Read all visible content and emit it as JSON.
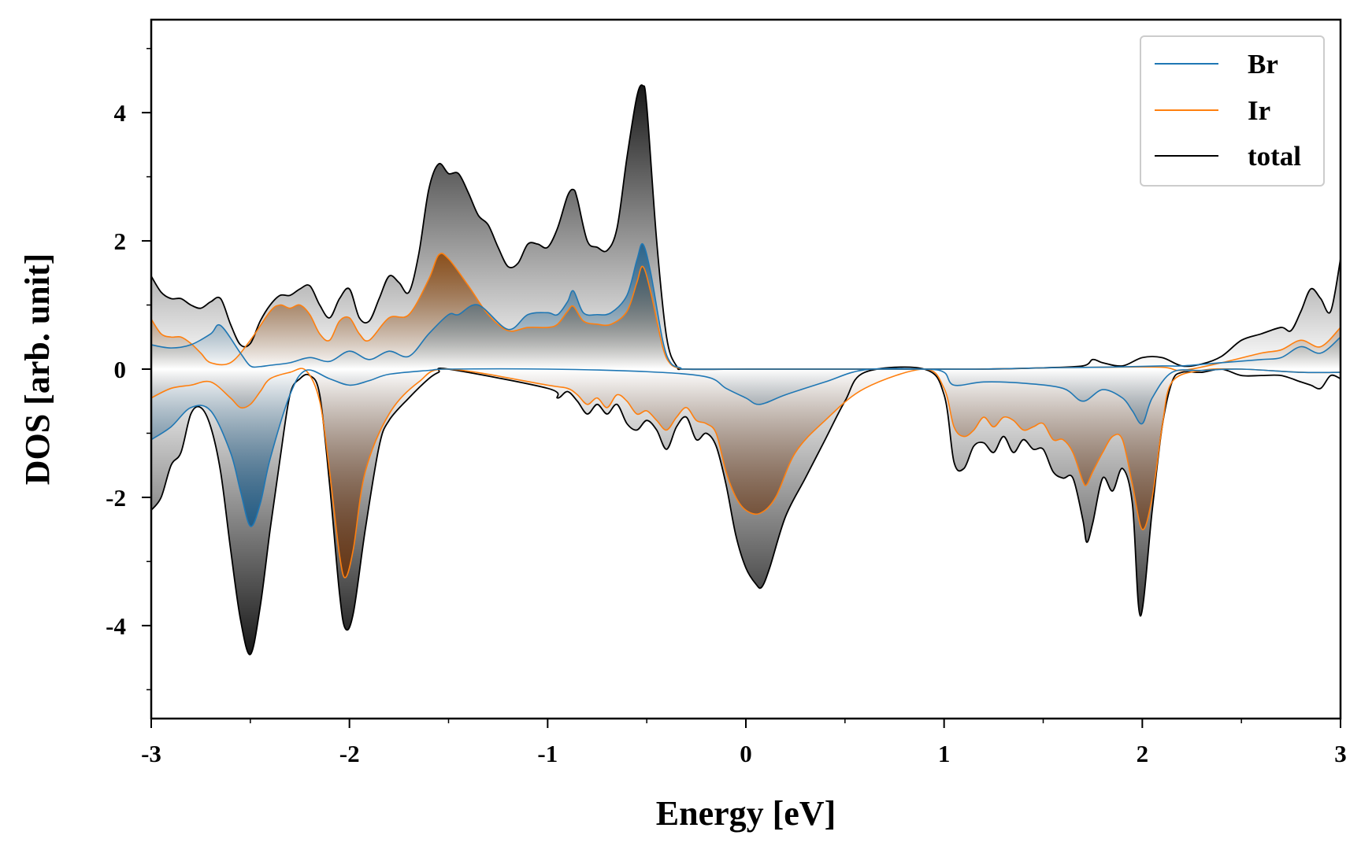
{
  "chart_data": {
    "type": "area",
    "xlabel": "Energy [eV]",
    "ylabel": "DOS [arb. unit]",
    "xlim": [
      -3,
      3
    ],
    "ylim": [
      -5.45,
      5.45
    ],
    "xticks": [
      -3,
      -2,
      -1,
      0,
      1,
      2,
      3
    ],
    "xtick_labels": [
      "-3",
      "-2",
      "-1",
      "0",
      "1",
      "2",
      "3"
    ],
    "yticks": [
      -4,
      -2,
      0,
      2,
      4
    ],
    "ytick_labels": [
      "-4",
      "-2",
      "0",
      "2",
      "4"
    ],
    "legend": {
      "placement": "top-right",
      "entries": [
        "Br",
        "Ir",
        "total"
      ]
    },
    "grid": false,
    "series": [
      {
        "name": "Br",
        "color": "#1f77b4",
        "spin_up": {
          "x": [
            -3,
            -2.9,
            -2.8,
            -2.7,
            -2.65,
            -2.55,
            -2.5,
            -2.45,
            -2.4,
            -2.3,
            -2.2,
            -2.1,
            -2.0,
            -1.9,
            -1.8,
            -1.7,
            -1.6,
            -1.5,
            -1.45,
            -1.35,
            -1.2,
            -1.1,
            -1.0,
            -0.95,
            -0.9,
            -0.87,
            -0.82,
            -0.75,
            -0.68,
            -0.6,
            -0.55,
            -0.52,
            -0.48,
            -0.42,
            -0.38,
            -0.33,
            -0.3,
            0.0,
            0.3,
            0.6,
            0.9,
            1.2,
            1.5,
            1.8,
            2.1,
            2.2,
            2.4,
            2.6,
            2.7,
            2.8,
            2.9,
            3.0
          ],
          "y": [
            0.38,
            0.33,
            0.38,
            0.55,
            0.68,
            0.25,
            0.05,
            0.04,
            0.06,
            0.1,
            0.18,
            0.12,
            0.28,
            0.15,
            0.28,
            0.2,
            0.55,
            0.85,
            0.85,
            1.0,
            0.62,
            0.85,
            0.88,
            0.85,
            1.05,
            1.22,
            0.88,
            0.85,
            0.88,
            1.15,
            1.7,
            1.95,
            1.5,
            0.45,
            0.1,
            0.02,
            0.0,
            0.0,
            0.0,
            0.0,
            0.0,
            0.0,
            0.02,
            0.03,
            0.05,
            0.05,
            0.1,
            0.15,
            0.18,
            0.35,
            0.25,
            0.5
          ]
        },
        "spin_down": {
          "x": [
            -3,
            -2.9,
            -2.8,
            -2.7,
            -2.6,
            -2.55,
            -2.5,
            -2.45,
            -2.4,
            -2.3,
            -2.22,
            -2.1,
            -2.0,
            -1.9,
            -1.8,
            -1.6,
            -1.5,
            -1.0,
            -0.5,
            -0.2,
            -0.1,
            0.0,
            0.07,
            0.2,
            0.4,
            0.6,
            0.9,
            1.0,
            1.05,
            1.2,
            1.4,
            1.6,
            1.7,
            1.8,
            1.9,
            1.95,
            2.0,
            2.05,
            2.15,
            2.3,
            2.5,
            2.8,
            3.0
          ],
          "y": [
            -1.1,
            -0.9,
            -0.6,
            -0.65,
            -1.3,
            -1.9,
            -2.45,
            -2.1,
            -1.4,
            -0.4,
            -0.02,
            -0.15,
            -0.25,
            -0.18,
            -0.08,
            -0.02,
            0.0,
            0.0,
            -0.04,
            -0.12,
            -0.3,
            -0.45,
            -0.55,
            -0.4,
            -0.2,
            -0.01,
            0.0,
            -0.05,
            -0.25,
            -0.2,
            -0.22,
            -0.3,
            -0.5,
            -0.32,
            -0.45,
            -0.65,
            -0.85,
            -0.45,
            -0.05,
            -0.02,
            0.0,
            -0.05,
            -0.05
          ]
        }
      },
      {
        "name": "Ir",
        "color": "#ff7f0e",
        "spin_up": {
          "x": [
            -3,
            -2.95,
            -2.9,
            -2.85,
            -2.8,
            -2.75,
            -2.7,
            -2.6,
            -2.5,
            -2.4,
            -2.35,
            -2.3,
            -2.25,
            -2.2,
            -2.15,
            -2.1,
            -2.05,
            -2.0,
            -1.95,
            -1.9,
            -1.8,
            -1.7,
            -1.6,
            -1.55,
            -1.5,
            -1.4,
            -1.3,
            -1.2,
            -1.1,
            -1.0,
            -0.95,
            -0.9,
            -0.87,
            -0.82,
            -0.75,
            -0.68,
            -0.6,
            -0.55,
            -0.52,
            -0.48,
            -0.42,
            -0.38,
            -0.33,
            -0.3,
            0.0,
            0.3,
            0.6,
            0.9,
            1.2,
            1.5,
            1.8,
            2.1,
            2.2,
            2.4,
            2.6,
            2.7,
            2.8,
            2.9,
            3.0
          ],
          "y": [
            0.78,
            0.55,
            0.5,
            0.5,
            0.4,
            0.25,
            0.1,
            0.1,
            0.45,
            0.9,
            1.0,
            0.95,
            1.0,
            0.85,
            0.55,
            0.45,
            0.75,
            0.8,
            0.55,
            0.45,
            0.8,
            0.85,
            1.4,
            1.78,
            1.72,
            1.3,
            0.85,
            0.6,
            0.65,
            0.65,
            0.7,
            0.9,
            0.98,
            0.75,
            0.7,
            0.7,
            0.9,
            1.35,
            1.6,
            1.2,
            0.35,
            0.08,
            0.01,
            0.0,
            0.0,
            0.0,
            0.0,
            0.0,
            0.0,
            0.02,
            0.03,
            0.03,
            -0.02,
            0.1,
            0.25,
            0.3,
            0.45,
            0.35,
            0.65
          ]
        },
        "spin_down": {
          "x": [
            -3,
            -2.9,
            -2.8,
            -2.7,
            -2.6,
            -2.55,
            -2.5,
            -2.45,
            -2.4,
            -2.3,
            -2.22,
            -2.15,
            -2.1,
            -2.05,
            -2.02,
            -1.98,
            -1.92,
            -1.8,
            -1.65,
            -1.5,
            -1.0,
            -0.9,
            -0.85,
            -0.8,
            -0.75,
            -0.7,
            -0.65,
            -0.6,
            -0.55,
            -0.5,
            -0.45,
            -0.4,
            -0.35,
            -0.3,
            -0.25,
            -0.2,
            -0.15,
            -0.1,
            -0.05,
            0.0,
            0.07,
            0.15,
            0.25,
            0.4,
            0.6,
            0.9,
            1.0,
            1.05,
            1.1,
            1.15,
            1.2,
            1.25,
            1.3,
            1.35,
            1.4,
            1.45,
            1.5,
            1.55,
            1.6,
            1.65,
            1.7,
            1.72,
            1.75,
            1.8,
            1.85,
            1.9,
            1.95,
            2.0,
            2.05,
            2.1,
            2.15,
            2.3,
            2.5,
            2.8,
            3.0
          ],
          "y": [
            -0.45,
            -0.3,
            -0.25,
            -0.2,
            -0.45,
            -0.6,
            -0.55,
            -0.35,
            -0.15,
            -0.05,
            -0.02,
            -0.5,
            -1.6,
            -2.9,
            -3.25,
            -2.8,
            -1.6,
            -0.7,
            -0.2,
            0.0,
            -0.25,
            -0.3,
            -0.4,
            -0.55,
            -0.45,
            -0.6,
            -0.4,
            -0.5,
            -0.7,
            -0.65,
            -0.8,
            -0.95,
            -0.75,
            -0.6,
            -0.8,
            -0.85,
            -1.0,
            -1.6,
            -2.0,
            -2.2,
            -2.25,
            -2.0,
            -1.3,
            -0.8,
            -0.3,
            0.0,
            -0.3,
            -0.9,
            -1.05,
            -0.95,
            -0.75,
            -0.9,
            -0.75,
            -0.8,
            -0.95,
            -0.9,
            -0.85,
            -1.1,
            -1.1,
            -1.3,
            -1.75,
            -1.8,
            -1.6,
            -1.3,
            -1.05,
            -1.1,
            -1.8,
            -2.5,
            -2.0,
            -0.9,
            -0.2,
            -0.02,
            0.0,
            -0.05,
            -0.05
          ]
        }
      },
      {
        "name": "total",
        "color": "#000000",
        "spin_up": {
          "x": [
            -3,
            -2.95,
            -2.9,
            -2.85,
            -2.8,
            -2.75,
            -2.7,
            -2.65,
            -2.6,
            -2.55,
            -2.5,
            -2.45,
            -2.4,
            -2.35,
            -2.3,
            -2.25,
            -2.2,
            -2.15,
            -2.1,
            -2.05,
            -2.0,
            -1.95,
            -1.9,
            -1.85,
            -1.8,
            -1.75,
            -1.7,
            -1.65,
            -1.6,
            -1.55,
            -1.5,
            -1.45,
            -1.4,
            -1.35,
            -1.3,
            -1.25,
            -1.2,
            -1.15,
            -1.1,
            -1.05,
            -1.0,
            -0.95,
            -0.9,
            -0.87,
            -0.85,
            -0.8,
            -0.75,
            -0.7,
            -0.65,
            -0.6,
            -0.55,
            -0.52,
            -0.5,
            -0.45,
            -0.4,
            -0.35,
            -0.3,
            0.0,
            0.3,
            0.6,
            0.9,
            1.2,
            1.5,
            1.7,
            1.75,
            1.8,
            1.9,
            2.0,
            2.1,
            2.2,
            2.3,
            2.4,
            2.5,
            2.6,
            2.7,
            2.75,
            2.8,
            2.85,
            2.9,
            2.95,
            3.0
          ],
          "y": [
            1.45,
            1.2,
            1.1,
            1.1,
            1.0,
            0.95,
            1.05,
            1.1,
            0.7,
            0.38,
            0.4,
            0.75,
            1.0,
            1.15,
            1.15,
            1.25,
            1.3,
            1.0,
            0.8,
            1.1,
            1.25,
            0.8,
            0.75,
            1.1,
            1.45,
            1.35,
            1.2,
            1.8,
            2.8,
            3.2,
            3.05,
            3.05,
            2.75,
            2.4,
            2.25,
            1.9,
            1.6,
            1.65,
            1.95,
            1.95,
            1.9,
            2.2,
            2.7,
            2.8,
            2.65,
            2.0,
            1.9,
            1.85,
            2.2,
            3.3,
            4.25,
            4.42,
            4.1,
            2.0,
            0.5,
            0.05,
            0.0,
            0.0,
            0.0,
            0.0,
            0.0,
            0.0,
            0.02,
            0.05,
            0.15,
            0.1,
            0.05,
            0.18,
            0.18,
            0.05,
            0.08,
            0.2,
            0.45,
            0.55,
            0.65,
            0.6,
            0.9,
            1.25,
            1.1,
            0.9,
            1.72
          ]
        },
        "spin_down": {
          "x": [
            -3,
            -2.95,
            -2.9,
            -2.85,
            -2.8,
            -2.75,
            -2.7,
            -2.65,
            -2.6,
            -2.55,
            -2.5,
            -2.45,
            -2.4,
            -2.35,
            -2.3,
            -2.25,
            -2.2,
            -2.15,
            -2.1,
            -2.05,
            -2.02,
            -1.98,
            -1.92,
            -1.85,
            -1.8,
            -1.7,
            -1.6,
            -1.55,
            -1.5,
            -1.0,
            -0.95,
            -0.9,
            -0.85,
            -0.8,
            -0.75,
            -0.7,
            -0.65,
            -0.6,
            -0.55,
            -0.5,
            -0.45,
            -0.4,
            -0.35,
            -0.3,
            -0.25,
            -0.2,
            -0.15,
            -0.1,
            -0.05,
            0.0,
            0.05,
            0.08,
            0.12,
            0.2,
            0.3,
            0.4,
            0.5,
            0.6,
            0.9,
            1.0,
            1.05,
            1.1,
            1.15,
            1.2,
            1.25,
            1.3,
            1.35,
            1.4,
            1.45,
            1.5,
            1.55,
            1.6,
            1.65,
            1.7,
            1.72,
            1.75,
            1.8,
            1.85,
            1.9,
            1.95,
            1.99,
            2.05,
            2.1,
            2.15,
            2.2,
            2.3,
            2.4,
            2.5,
            2.6,
            2.7,
            2.8,
            2.85,
            2.9,
            2.95,
            3.0
          ],
          "y": [
            -2.2,
            -2.0,
            -1.5,
            -1.3,
            -0.7,
            -0.6,
            -0.9,
            -1.6,
            -2.8,
            -3.9,
            -4.45,
            -3.7,
            -2.5,
            -1.4,
            -0.4,
            -0.15,
            -0.1,
            -0.4,
            -1.8,
            -3.5,
            -4.05,
            -3.8,
            -2.5,
            -1.2,
            -0.8,
            -0.45,
            -0.15,
            -0.05,
            0.0,
            -0.3,
            -0.45,
            -0.35,
            -0.5,
            -0.7,
            -0.55,
            -0.7,
            -0.55,
            -0.85,
            -0.95,
            -0.8,
            -0.95,
            -1.25,
            -0.9,
            -0.75,
            -1.1,
            -1.0,
            -1.2,
            -1.8,
            -2.6,
            -3.1,
            -3.35,
            -3.4,
            -3.1,
            -2.3,
            -1.7,
            -1.1,
            -0.5,
            -0.05,
            0.0,
            -0.4,
            -1.45,
            -1.55,
            -1.2,
            -1.15,
            -1.3,
            -1.05,
            -1.3,
            -1.1,
            -1.25,
            -1.25,
            -1.6,
            -1.7,
            -1.7,
            -2.35,
            -2.7,
            -2.4,
            -1.7,
            -1.9,
            -1.55,
            -2.1,
            -3.85,
            -2.2,
            -0.9,
            -0.2,
            -0.05,
            -0.05,
            0.0,
            -0.1,
            -0.1,
            -0.1,
            -0.2,
            -0.25,
            -0.3,
            -0.1,
            -0.15
          ]
        }
      }
    ]
  }
}
